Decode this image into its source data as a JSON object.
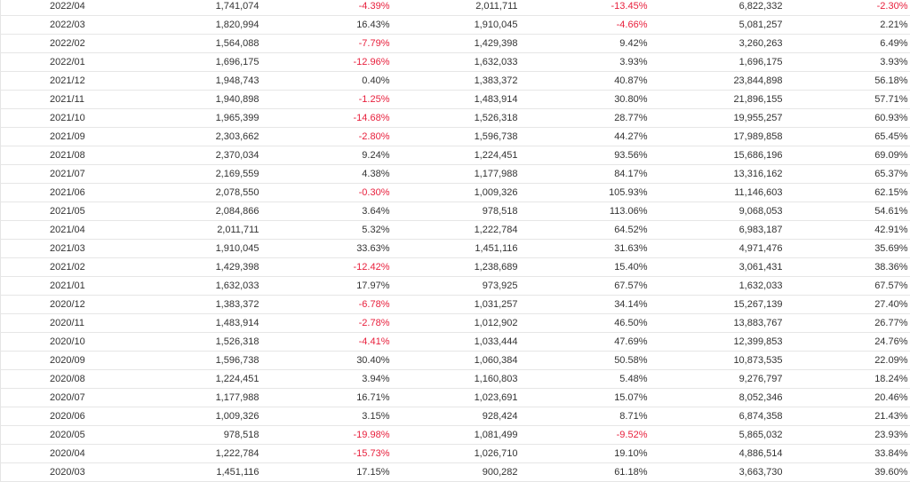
{
  "table": {
    "rows": [
      [
        "2022/04",
        "1,741,074",
        "-4.39%",
        "2,011,711",
        "-13.45%",
        "6,822,332",
        "-2.30%"
      ],
      [
        "2022/03",
        "1,820,994",
        "16.43%",
        "1,910,045",
        "-4.66%",
        "5,081,257",
        "2.21%"
      ],
      [
        "2022/02",
        "1,564,088",
        "-7.79%",
        "1,429,398",
        "9.42%",
        "3,260,263",
        "6.49%"
      ],
      [
        "2022/01",
        "1,696,175",
        "-12.96%",
        "1,632,033",
        "3.93%",
        "1,696,175",
        "3.93%"
      ],
      [
        "2021/12",
        "1,948,743",
        "0.40%",
        "1,383,372",
        "40.87%",
        "23,844,898",
        "56.18%"
      ],
      [
        "2021/11",
        "1,940,898",
        "-1.25%",
        "1,483,914",
        "30.80%",
        "21,896,155",
        "57.71%"
      ],
      [
        "2021/10",
        "1,965,399",
        "-14.68%",
        "1,526,318",
        "28.77%",
        "19,955,257",
        "60.93%"
      ],
      [
        "2021/09",
        "2,303,662",
        "-2.80%",
        "1,596,738",
        "44.27%",
        "17,989,858",
        "65.45%"
      ],
      [
        "2021/08",
        "2,370,034",
        "9.24%",
        "1,224,451",
        "93.56%",
        "15,686,196",
        "69.09%"
      ],
      [
        "2021/07",
        "2,169,559",
        "4.38%",
        "1,177,988",
        "84.17%",
        "13,316,162",
        "65.37%"
      ],
      [
        "2021/06",
        "2,078,550",
        "-0.30%",
        "1,009,326",
        "105.93%",
        "11,146,603",
        "62.15%"
      ],
      [
        "2021/05",
        "2,084,866",
        "3.64%",
        "978,518",
        "113.06%",
        "9,068,053",
        "54.61%"
      ],
      [
        "2021/04",
        "2,011,711",
        "5.32%",
        "1,222,784",
        "64.52%",
        "6,983,187",
        "42.91%"
      ],
      [
        "2021/03",
        "1,910,045",
        "33.63%",
        "1,451,116",
        "31.63%",
        "4,971,476",
        "35.69%"
      ],
      [
        "2021/02",
        "1,429,398",
        "-12.42%",
        "1,238,689",
        "15.40%",
        "3,061,431",
        "38.36%"
      ],
      [
        "2021/01",
        "1,632,033",
        "17.97%",
        "973,925",
        "67.57%",
        "1,632,033",
        "67.57%"
      ],
      [
        "2020/12",
        "1,383,372",
        "-6.78%",
        "1,031,257",
        "34.14%",
        "15,267,139",
        "27.40%"
      ],
      [
        "2020/11",
        "1,483,914",
        "-2.78%",
        "1,012,902",
        "46.50%",
        "13,883,767",
        "26.77%"
      ],
      [
        "2020/10",
        "1,526,318",
        "-4.41%",
        "1,033,444",
        "47.69%",
        "12,399,853",
        "24.76%"
      ],
      [
        "2020/09",
        "1,596,738",
        "30.40%",
        "1,060,384",
        "50.58%",
        "10,873,535",
        "22.09%"
      ],
      [
        "2020/08",
        "1,224,451",
        "3.94%",
        "1,160,803",
        "5.48%",
        "9,276,797",
        "18.24%"
      ],
      [
        "2020/07",
        "1,177,988",
        "16.71%",
        "1,023,691",
        "15.07%",
        "8,052,346",
        "20.46%"
      ],
      [
        "2020/06",
        "1,009,326",
        "3.15%",
        "928,424",
        "8.71%",
        "6,874,358",
        "21.43%"
      ],
      [
        "2020/05",
        "978,518",
        "-19.98%",
        "1,081,499",
        "-9.52%",
        "5,865,032",
        "23.93%"
      ],
      [
        "2020/04",
        "1,222,784",
        "-15.73%",
        "1,026,710",
        "19.10%",
        "4,886,514",
        "33.84%"
      ],
      [
        "2020/03",
        "1,451,116",
        "17.15%",
        "900,282",
        "61.18%",
        "3,663,730",
        "39.60%"
      ]
    ]
  },
  "colors": {
    "negative": "#e8203d",
    "text": "#333333",
    "grid": "#e6e6e6"
  }
}
